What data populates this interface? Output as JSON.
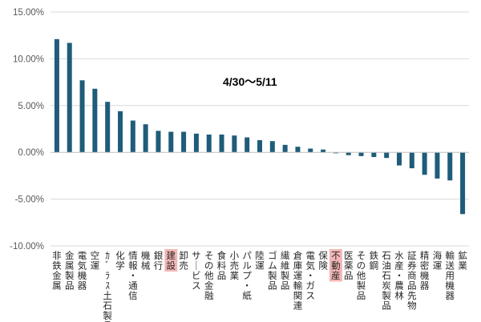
{
  "chart_data": {
    "type": "bar",
    "annotation": "4/30～5/11",
    "ylim": [
      -10,
      15
    ],
    "yticks": [
      15,
      10,
      5,
      0,
      -5,
      -10
    ],
    "ytick_labels": [
      "15.00%",
      "10.00%",
      "5.00%",
      "0.00%",
      "-5.00%",
      "-10.00%"
    ],
    "grid": true,
    "bar_color": "#1f5c7a",
    "highlight_color": "#f4b6b6",
    "highlight_categories": [
      "建設",
      "不動産"
    ],
    "categories": [
      "非鉄金属",
      "金属製品",
      "電気機器",
      "空運",
      "ｶﾞﾗｽ土石製品",
      "化学",
      "情報・通信",
      "機械",
      "銀行",
      "建設",
      "卸売",
      "サービス",
      "その他金融",
      "食料品",
      "小売業",
      "パルプ・紙",
      "陸運",
      "ゴム製品",
      "繊維製品",
      "倉庫運輸関連",
      "電気・ガス",
      "保険",
      "不動産",
      "医薬品",
      "その他製品",
      "鉄鋼",
      "石油石炭製品",
      "水産・農林",
      "証券商品先物",
      "精密機器",
      "海運",
      "輸送用機器",
      "鉱業"
    ],
    "values": [
      12.1,
      11.7,
      7.7,
      6.8,
      5.4,
      4.4,
      3.4,
      3.0,
      2.3,
      2.2,
      2.2,
      2.0,
      1.9,
      1.9,
      1.8,
      1.6,
      1.3,
      1.2,
      0.8,
      0.6,
      0.4,
      0.3,
      -0.1,
      -0.3,
      -0.4,
      -0.5,
      -0.6,
      -1.4,
      -1.7,
      -2.4,
      -2.8,
      -3.0,
      -6.6
    ]
  }
}
